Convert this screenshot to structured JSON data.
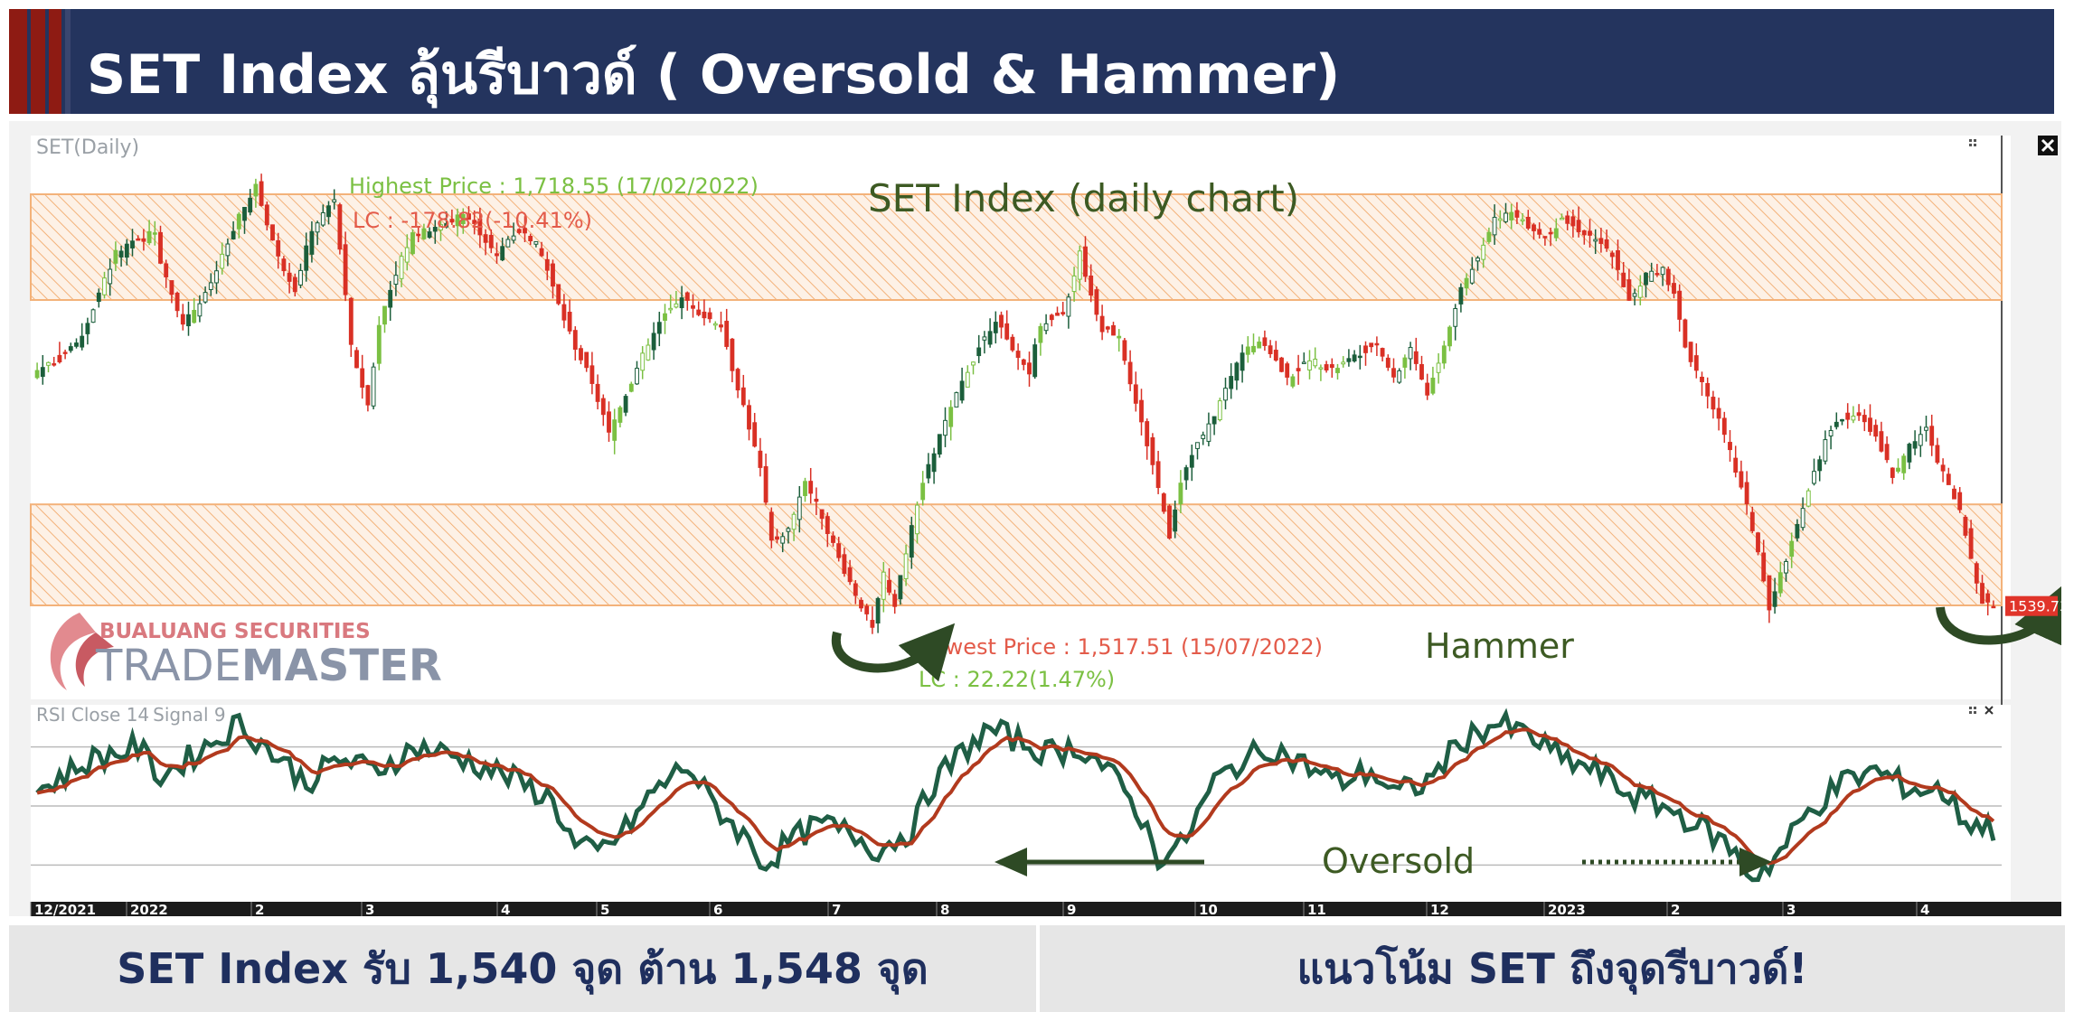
{
  "header": {
    "title": "SET Index ลุ้นรีบาวด์ ( Oversold & Hammer)"
  },
  "footer": {
    "left": "SET Index รับ 1,540 จุด ต้าน 1,548 จุด",
    "right": "แนวโน้ม SET ถึงจุดรีบาวด์!"
  },
  "colors": {
    "banner": "#24345e",
    "accent_red": "#8e1b13",
    "up": "#1b5e3b",
    "down": "#d93025",
    "rsi": "#1f5e45",
    "signal": "#b23a1e",
    "zone": "#f3b27a"
  },
  "broker": {
    "line1": "BUALUANG SECURITIES",
    "word_a": "TRADE",
    "word_b": "MASTER",
    "icon": "swoosh-logo-icon"
  },
  "chart_data": {
    "type": "candlestick",
    "series_label": "SET(Daily)",
    "title": "SET Index (daily chart)",
    "x_labels": [
      "12/2021",
      "2022",
      "2",
      "3",
      "4",
      "5",
      "6",
      "7",
      "8",
      "9",
      "10",
      "11",
      "12",
      "2023",
      "2",
      "3",
      "4"
    ],
    "ylim": [
      1500,
      1740
    ],
    "resistance_zone": [
      1670,
      1715
    ],
    "support_zone": [
      1540,
      1583
    ],
    "highest": {
      "label": "Highest Price : 1,718.55 (17/02/2022)",
      "lc": "LC : -178.82(-10.41%)",
      "value": 1718.55
    },
    "lowest": {
      "label": "Lowest Price : 1,517.51 (15/07/2022)",
      "lc": "LC : 22.22(1.47%)",
      "value": 1517.51
    },
    "pattern_label": "Hammer",
    "last_price_tag": "1539.73",
    "last_price_value": 1539.73,
    "path_points": [
      [
        0,
        1640
      ],
      [
        4,
        1645
      ],
      [
        8,
        1655
      ],
      [
        14,
        1690
      ],
      [
        19,
        1696
      ],
      [
        21,
        1700
      ],
      [
        22,
        1687
      ],
      [
        26,
        1660
      ],
      [
        30,
        1672
      ],
      [
        33,
        1688
      ],
      [
        36,
        1705
      ],
      [
        39,
        1718
      ],
      [
        43,
        1688
      ],
      [
        46,
        1675
      ],
      [
        49,
        1700
      ],
      [
        53,
        1713
      ],
      [
        56,
        1650
      ],
      [
        59,
        1625
      ],
      [
        61,
        1660
      ],
      [
        64,
        1682
      ],
      [
        67,
        1698
      ],
      [
        71,
        1700
      ],
      [
        74,
        1704
      ],
      [
        76,
        1707
      ],
      [
        79,
        1699
      ],
      [
        82,
        1688
      ],
      [
        84,
        1697
      ],
      [
        87,
        1700
      ],
      [
        90,
        1690
      ],
      [
        93,
        1668
      ],
      [
        96,
        1650
      ],
      [
        99,
        1635
      ],
      [
        102,
        1613
      ],
      [
        105,
        1630
      ],
      [
        108,
        1646
      ],
      [
        111,
        1660
      ],
      [
        115,
        1672
      ],
      [
        119,
        1663
      ],
      [
        122,
        1660
      ],
      [
        124,
        1641
      ],
      [
        126,
        1625
      ],
      [
        129,
        1598
      ],
      [
        131,
        1567
      ],
      [
        134,
        1572
      ],
      [
        137,
        1593
      ],
      [
        140,
        1578
      ],
      [
        143,
        1560
      ],
      [
        146,
        1545
      ],
      [
        149,
        1530
      ],
      [
        151,
        1553
      ],
      [
        153,
        1540
      ],
      [
        155,
        1563
      ],
      [
        158,
        1592
      ],
      [
        161,
        1612
      ],
      [
        165,
        1635
      ],
      [
        168,
        1650
      ],
      [
        171,
        1662
      ],
      [
        174,
        1648
      ],
      [
        177,
        1640
      ],
      [
        179,
        1660
      ],
      [
        183,
        1663
      ],
      [
        186,
        1690
      ],
      [
        188,
        1672
      ],
      [
        190,
        1658
      ],
      [
        193,
        1655
      ],
      [
        196,
        1626
      ],
      [
        199,
        1600
      ],
      [
        202,
        1570
      ],
      [
        204,
        1593
      ],
      [
        206,
        1605
      ],
      [
        209,
        1616
      ],
      [
        212,
        1632
      ],
      [
        215,
        1648
      ],
      [
        219,
        1652
      ],
      [
        223,
        1636
      ],
      [
        227,
        1645
      ],
      [
        231,
        1640
      ],
      [
        235,
        1646
      ],
      [
        239,
        1652
      ],
      [
        242,
        1636
      ],
      [
        245,
        1650
      ],
      [
        248,
        1630
      ],
      [
        251,
        1650
      ],
      [
        254,
        1675
      ],
      [
        257,
        1688
      ],
      [
        260,
        1706
      ],
      [
        263,
        1706
      ],
      [
        266,
        1702
      ],
      [
        269,
        1697
      ],
      [
        272,
        1704
      ],
      [
        275,
        1700
      ],
      [
        278,
        1696
      ],
      [
        281,
        1690
      ],
      [
        284,
        1670
      ],
      [
        287,
        1680
      ],
      [
        290,
        1684
      ],
      [
        292,
        1672
      ],
      [
        294,
        1650
      ],
      [
        296,
        1640
      ],
      [
        299,
        1625
      ],
      [
        302,
        1605
      ],
      [
        305,
        1582
      ],
      [
        307,
        1563
      ],
      [
        308,
        1550
      ],
      [
        309,
        1538
      ],
      [
        312,
        1560
      ],
      [
        316,
        1590
      ],
      [
        319,
        1610
      ],
      [
        322,
        1620
      ],
      [
        325,
        1622
      ],
      [
        328,
        1612
      ],
      [
        331,
        1595
      ],
      [
        334,
        1608
      ],
      [
        337,
        1615
      ],
      [
        340,
        1596
      ],
      [
        343,
        1580
      ],
      [
        345,
        1560
      ],
      [
        347,
        1542
      ],
      [
        349,
        1539.73
      ]
    ],
    "rsi": {
      "label": "RSI Close 14",
      "signal_label": "Signal 9",
      "oversold_label": "Oversold",
      "levels": [
        30,
        50,
        70
      ],
      "ylim": [
        20,
        80
      ],
      "values_anchor": [
        [
          0,
          55
        ],
        [
          10,
          66
        ],
        [
          18,
          70
        ],
        [
          22,
          60
        ],
        [
          30,
          70
        ],
        [
          36,
          78
        ],
        [
          42,
          68
        ],
        [
          48,
          58
        ],
        [
          54,
          66
        ],
        [
          60,
          62
        ],
        [
          68,
          70
        ],
        [
          76,
          66
        ],
        [
          84,
          60
        ],
        [
          92,
          52
        ],
        [
          96,
          36
        ],
        [
          100,
          34
        ],
        [
          105,
          42
        ],
        [
          110,
          55
        ],
        [
          116,
          64
        ],
        [
          120,
          52
        ],
        [
          126,
          40
        ],
        [
          130,
          30
        ],
        [
          134,
          38
        ],
        [
          140,
          44
        ],
        [
          146,
          40
        ],
        [
          150,
          35
        ],
        [
          156,
          42
        ],
        [
          160,
          58
        ],
        [
          166,
          70
        ],
        [
          170,
          76
        ],
        [
          175,
          72
        ],
        [
          180,
          68
        ],
        [
          186,
          70
        ],
        [
          190,
          64
        ],
        [
          196,
          50
        ],
        [
          200,
          33
        ],
        [
          204,
          36
        ],
        [
          210,
          58
        ],
        [
          214,
          64
        ],
        [
          220,
          70
        ],
        [
          226,
          64
        ],
        [
          232,
          58
        ],
        [
          238,
          62
        ],
        [
          242,
          54
        ],
        [
          248,
          58
        ],
        [
          254,
          72
        ],
        [
          260,
          78
        ],
        [
          266,
          74
        ],
        [
          272,
          66
        ],
        [
          278,
          62
        ],
        [
          284,
          54
        ],
        [
          290,
          50
        ],
        [
          296,
          44
        ],
        [
          302,
          36
        ],
        [
          306,
          26
        ],
        [
          310,
          32
        ],
        [
          316,
          48
        ],
        [
          322,
          58
        ],
        [
          328,
          62
        ],
        [
          334,
          56
        ],
        [
          340,
          55
        ],
        [
          344,
          45
        ],
        [
          349,
          42
        ]
      ]
    }
  }
}
